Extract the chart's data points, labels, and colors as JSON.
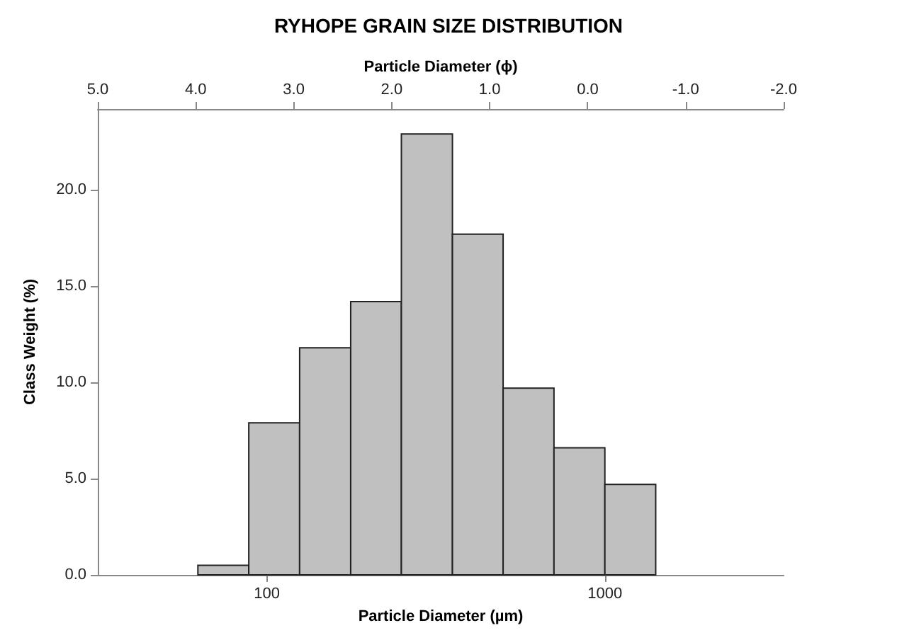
{
  "chart_data": {
    "type": "histogram",
    "title": "RYHOPE GRAIN SIZE DISTRIBUTION",
    "xlabel": "Particle Diameter (µm)",
    "x2label": "Particle Diameter (ϕ)",
    "ylabel": "Class Weight (%)",
    "bins": [
      62.5,
      88.4,
      125,
      177,
      250,
      354,
      500,
      707,
      1000,
      1414
    ],
    "values": [
      0.5,
      7.9,
      11.8,
      14.2,
      22.9,
      17.7,
      9.7,
      6.6,
      4.7
    ],
    "color": "#c0c0c0",
    "log": "x",
    "grid": false,
    "xlim": [
      31.6,
      3380
    ],
    "xticks": [
      100,
      1000
    ],
    "x2lim": [
      5,
      -2
    ],
    "x2ticks": [
      {
        "value": 5,
        "label": "5.0"
      },
      {
        "value": 4,
        "label": "4.0"
      },
      {
        "value": 3,
        "label": "3.0"
      },
      {
        "value": 2,
        "label": "2.0"
      },
      {
        "value": 1,
        "label": "1.0"
      },
      {
        "value": 0,
        "label": "0.0"
      },
      {
        "value": -1,
        "label": "-1.0"
      },
      {
        "value": -2,
        "label": "-2.0"
      }
    ],
    "ylim": [
      0,
      24.2
    ],
    "yticks": [
      {
        "value": 0,
        "label": "0.0"
      },
      {
        "value": 5,
        "label": "5.0"
      },
      {
        "value": 10,
        "label": "10.0"
      },
      {
        "value": 15,
        "label": "15.0"
      },
      {
        "value": 20,
        "label": "20.0"
      }
    ]
  }
}
